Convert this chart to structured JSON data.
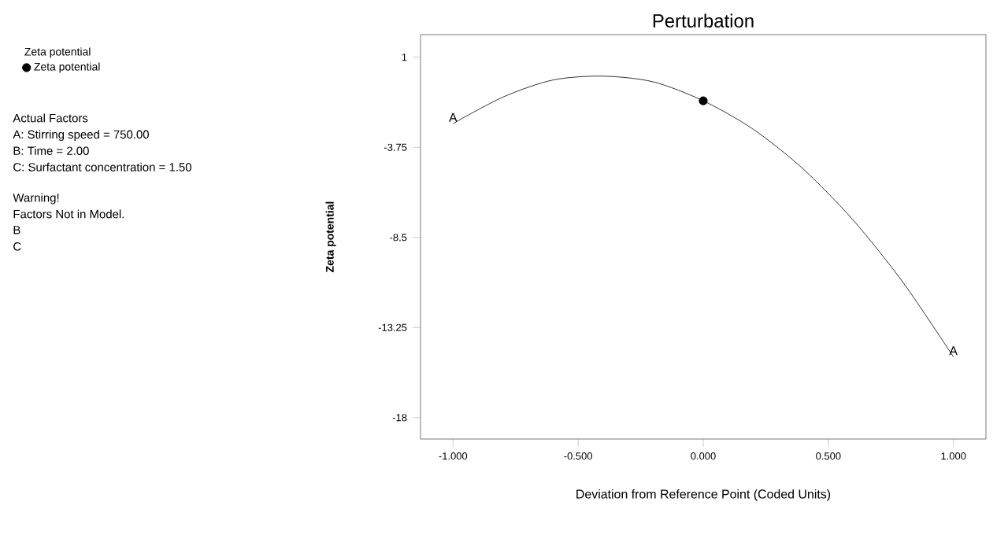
{
  "chart_data": {
    "type": "line",
    "title": "Perturbation",
    "xlabel": "Deviation from Reference Point (Coded Units)",
    "ylabel": "Zeta potential",
    "legend_title": "Zeta potential",
    "legend": "left",
    "xlim": [
      -1.13,
      1.13
    ],
    "ylim": [
      -19.13,
      2.19
    ],
    "xticks": [
      {
        "value": -1,
        "label": "-1.000"
      },
      {
        "value": -0.5,
        "label": "-0.500"
      },
      {
        "value": 0,
        "label": "0.000"
      },
      {
        "value": 0.5,
        "label": "0.500"
      },
      {
        "value": 1,
        "label": "1.000"
      }
    ],
    "yticks": [
      1,
      -3.75,
      -8.5,
      -13.25,
      -18
    ],
    "grid": false,
    "marker": "circle",
    "series": [
      {
        "type": "line",
        "color": "#000000",
        "marker": "none",
        "x": [
          -1,
          -0.8,
          -0.6,
          -0.4,
          -0.2,
          0,
          0.2,
          0.4,
          0.6,
          0.8,
          1
        ],
        "values": [
          -2.5,
          -1.1,
          -0.2,
          0.0,
          -0.3,
          -1.3,
          -2.8,
          -4.9,
          -7.6,
          -10.9,
          -14.8
        ]
      },
      {
        "type": "scatter",
        "name": "Zeta potential",
        "color": "#000000",
        "x": [
          0
        ],
        "values": [
          -1.3
        ]
      }
    ],
    "annotations": [
      "Actual Factors",
      "A: Stirring speed = 750.00",
      "B: Time = 2.00",
      "C: Surfactant concentration = 1.50",
      "Warning!",
      "Factors Not in Model.",
      "B",
      "C",
      {
        "text": "A",
        "x": -1,
        "y": -2.5
      },
      {
        "text": "A",
        "x": 1,
        "y": -14.8
      }
    ]
  }
}
